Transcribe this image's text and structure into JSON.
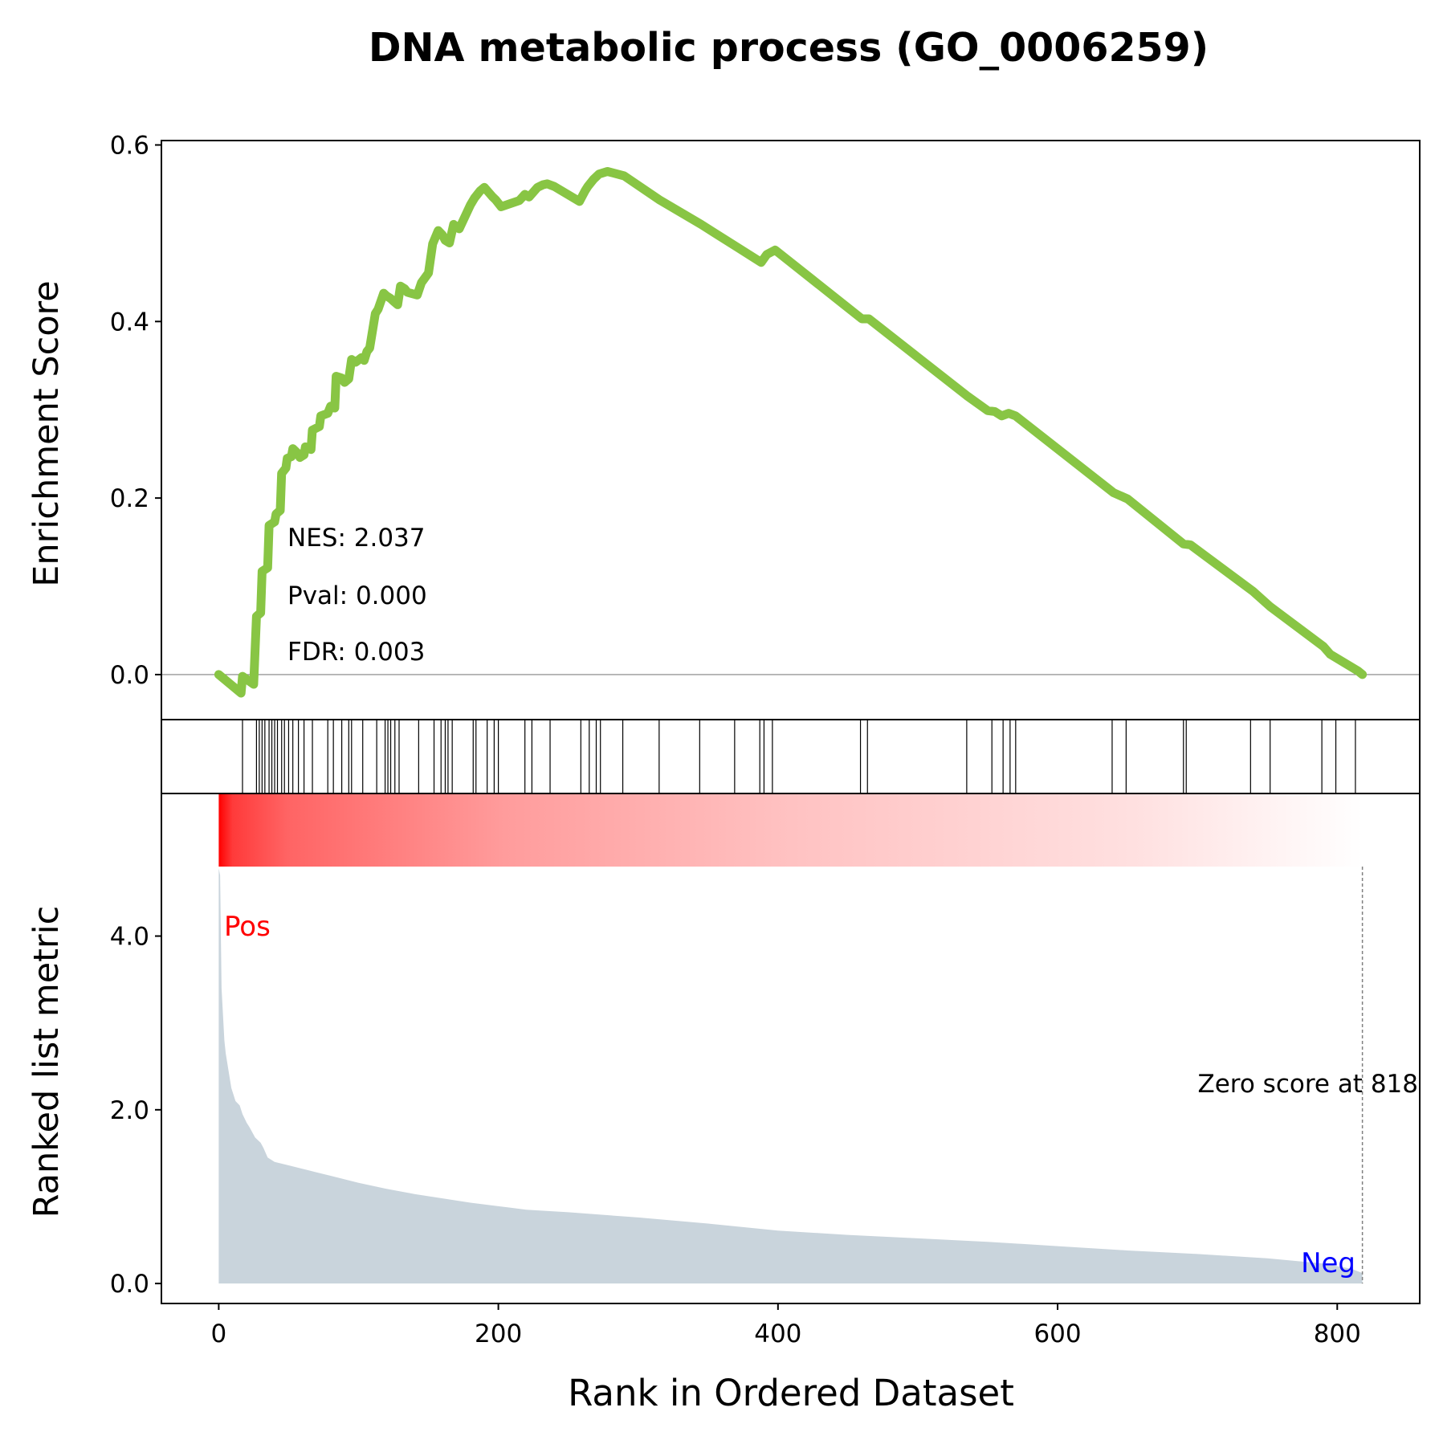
{
  "title": "DNA metabolic process (GO_0006259)",
  "colors": {
    "es_line": "#88c544",
    "metric_fill": "#c9d4dc",
    "pos_label": "#ff0000",
    "neg_label": "#0000ff",
    "heat_high": "#ff0000",
    "heat_low": "#ffffff",
    "axis": "#000000"
  },
  "chart_data": [
    {
      "type": "line",
      "name": "enrichment-score",
      "ylabel": "Enrichment Score",
      "xlim": [
        -41,
        859
      ],
      "ylim": [
        -0.051,
        0.605
      ],
      "y_ticks": [
        0.0,
        0.2,
        0.4,
        0.6
      ],
      "y_tick_labels": [
        "0.0",
        "0.2",
        "0.4",
        "0.6"
      ],
      "zero_line": true,
      "annotations": {
        "nes": "NES: 2.037",
        "pval": "Pval: 0.000",
        "fdr": "FDR: 0.003"
      },
      "x": [
        0,
        16,
        17,
        25,
        27,
        30,
        31,
        35,
        36,
        40,
        41,
        44,
        45,
        48,
        49,
        52,
        53,
        57,
        58,
        61,
        62,
        66,
        67,
        72,
        73,
        78,
        80,
        83,
        84,
        88,
        90,
        93,
        95,
        98,
        102,
        104,
        106,
        108,
        112,
        114,
        118,
        120,
        123,
        125,
        128,
        130,
        133,
        135,
        142,
        145,
        150,
        153,
        157,
        160,
        162,
        165,
        168,
        172,
        180,
        183,
        187,
        190,
        196,
        198,
        202,
        215,
        219,
        222,
        228,
        232,
        235,
        240,
        258,
        262,
        264,
        268,
        272,
        278,
        290,
        315,
        345,
        370,
        388,
        392,
        398,
        460,
        465,
        535,
        550,
        555,
        560,
        565,
        570,
        640,
        650,
        690,
        695,
        740,
        752,
        790,
        795,
        815,
        818
      ],
      "y": [
        0.0,
        -0.021,
        -0.002,
        -0.011,
        0.066,
        0.07,
        0.117,
        0.121,
        0.169,
        0.173,
        0.182,
        0.186,
        0.228,
        0.234,
        0.245,
        0.247,
        0.256,
        0.25,
        0.246,
        0.249,
        0.258,
        0.255,
        0.277,
        0.281,
        0.293,
        0.296,
        0.304,
        0.302,
        0.338,
        0.336,
        0.331,
        0.335,
        0.357,
        0.354,
        0.359,
        0.356,
        0.366,
        0.37,
        0.409,
        0.414,
        0.432,
        0.429,
        0.426,
        0.423,
        0.419,
        0.44,
        0.437,
        0.433,
        0.43,
        0.444,
        0.455,
        0.488,
        0.503,
        0.498,
        0.492,
        0.489,
        0.51,
        0.505,
        0.532,
        0.54,
        0.548,
        0.552,
        0.541,
        0.538,
        0.53,
        0.537,
        0.544,
        0.541,
        0.552,
        0.555,
        0.556,
        0.553,
        0.536,
        0.548,
        0.553,
        0.561,
        0.567,
        0.57,
        0.565,
        0.538,
        0.51,
        0.485,
        0.467,
        0.476,
        0.481,
        0.403,
        0.403,
        0.316,
        0.299,
        0.298,
        0.293,
        0.296,
        0.293,
        0.206,
        0.199,
        0.148,
        0.147,
        0.094,
        0.077,
        0.032,
        0.023,
        0.004,
        0.0
      ]
    },
    {
      "type": "barcode",
      "name": "hit-positions",
      "x": [
        17,
        27,
        29,
        31,
        33,
        36,
        38,
        40,
        42,
        45,
        47,
        50,
        53,
        57,
        61,
        67,
        78,
        82,
        88,
        93,
        95,
        103,
        113,
        119,
        121,
        123,
        126,
        129,
        143,
        154,
        159,
        162,
        164,
        167,
        182,
        184,
        192,
        197,
        200,
        219,
        224,
        237,
        259,
        265,
        270,
        273,
        289,
        315,
        344,
        369,
        387,
        390,
        396,
        459,
        464,
        535,
        553,
        561,
        566,
        570,
        639,
        649,
        690,
        692,
        738,
        752,
        789,
        799,
        813
      ]
    },
    {
      "type": "heatmap",
      "name": "rank-heatmap",
      "x_range": [
        0,
        818
      ],
      "gradient": "red-to-white"
    },
    {
      "type": "area",
      "name": "ranked-list-metric",
      "ylabel": "Ranked list metric",
      "xlabel": "Rank in Ordered Dataset",
      "xlim": [
        -41,
        859
      ],
      "ylim": [
        -0.23,
        4.8
      ],
      "x_ticks": [
        0,
        200,
        400,
        600,
        800
      ],
      "x_tick_labels": [
        "0",
        "200",
        "400",
        "600",
        "800"
      ],
      "y_ticks": [
        0.0,
        2.0,
        4.0
      ],
      "y_tick_labels": [
        "0.0",
        "2.0",
        "4.0"
      ],
      "pos_label": "Pos",
      "neg_label": "Neg",
      "zero_score_label": "Zero score at 818",
      "zero_score_x": 818,
      "x": [
        0,
        1,
        2,
        4,
        5,
        7,
        9,
        12,
        15,
        17,
        20,
        22,
        26,
        30,
        32,
        35,
        40,
        50,
        60,
        70,
        80,
        100,
        120,
        140,
        160,
        180,
        200,
        220,
        250,
        300,
        350,
        400,
        450,
        500,
        550,
        600,
        650,
        700,
        750,
        790,
        810,
        818
      ],
      "y": [
        4.78,
        4.7,
        3.4,
        2.8,
        2.65,
        2.45,
        2.25,
        2.1,
        2.05,
        1.95,
        1.85,
        1.8,
        1.68,
        1.62,
        1.56,
        1.45,
        1.4,
        1.36,
        1.32,
        1.28,
        1.24,
        1.16,
        1.09,
        1.03,
        0.98,
        0.93,
        0.89,
        0.85,
        0.82,
        0.76,
        0.69,
        0.61,
        0.56,
        0.52,
        0.48,
        0.43,
        0.38,
        0.34,
        0.29,
        0.23,
        0.17,
        0.12
      ]
    }
  ]
}
